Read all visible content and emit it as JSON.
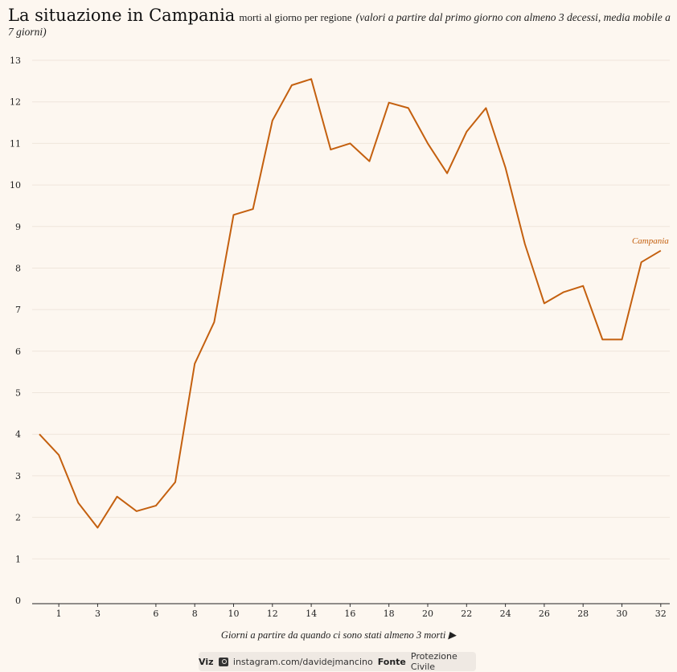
{
  "header": {
    "title": "La situazione in Campania",
    "subtitle": "morti al giorno per regione",
    "note": "(valori a partire dal primo giorno con almeno 3 decessi, media mobile a 7 giorni)"
  },
  "chart_data": {
    "type": "line",
    "xlabel": "Giorni a partire da quando ci sono stati almeno 3 morti ▶",
    "ylabel": "",
    "x_ticks": [
      1,
      3,
      6,
      8,
      10,
      12,
      14,
      16,
      18,
      20,
      22,
      24,
      26,
      28,
      30,
      32
    ],
    "y_ticks": [
      0,
      1,
      2,
      3,
      4,
      5,
      6,
      7,
      8,
      9,
      10,
      11,
      12,
      13
    ],
    "ylim": [
      0,
      13
    ],
    "grid": true,
    "series": [
      {
        "name": "Campania",
        "color": "#c4600f",
        "x": [
          0,
          1,
          2,
          3,
          4,
          5,
          6,
          7,
          8,
          9,
          10,
          11,
          12,
          13,
          14,
          15,
          16,
          17,
          18,
          19,
          20,
          21,
          22,
          23,
          24,
          25,
          26,
          27,
          28,
          29,
          30,
          31,
          32
        ],
        "y": [
          4.0,
          3.5,
          2.35,
          1.75,
          2.5,
          2.15,
          2.28,
          2.85,
          5.7,
          6.7,
          9.28,
          9.42,
          11.55,
          12.4,
          12.55,
          10.85,
          11.0,
          10.57,
          11.98,
          11.85,
          11.0,
          10.28,
          11.28,
          11.85,
          10.42,
          8.58,
          7.15,
          7.42,
          7.57,
          6.28,
          6.28,
          8.14,
          8.42
        ]
      }
    ]
  },
  "footer": {
    "viz_label": "Viz",
    "handle": "instagram.com/davidejmancino",
    "source_label": "Fonte",
    "source": "Protezione Civile"
  }
}
